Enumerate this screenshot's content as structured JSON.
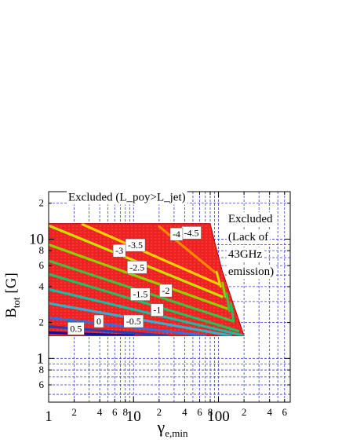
{
  "chart_data": {
    "type": "contour",
    "xlabel_main": "γ",
    "xlabel_sub": "e,min",
    "ylabel_main": "B",
    "ylabel_sub": "tot",
    "ylabel_unit": "[G]",
    "x_scale": "log",
    "y_scale": "log",
    "xlim": [
      1,
      700
    ],
    "ylim": [
      0.43,
      25
    ],
    "grid": true,
    "x_major_ticks": [
      {
        "v": 1,
        "label": "1"
      },
      {
        "v": 10,
        "label": "10"
      },
      {
        "v": 100,
        "label": "100"
      }
    ],
    "x_minor_ticks": [
      {
        "v": 2,
        "label": "2"
      },
      {
        "v": 4,
        "label": "4"
      },
      {
        "v": 6,
        "label": "6"
      },
      {
        "v": 8,
        "label": "8"
      },
      {
        "v": 20,
        "label": "2"
      },
      {
        "v": 40,
        "label": "4"
      },
      {
        "v": 60,
        "label": "6"
      },
      {
        "v": 80,
        "label": "8"
      },
      {
        "v": 200,
        "label": "2"
      },
      {
        "v": 400,
        "label": "4"
      },
      {
        "v": 600,
        "label": "6"
      }
    ],
    "y_major_ticks": [
      {
        "v": 1,
        "label": "1"
      },
      {
        "v": 10,
        "label": "10"
      }
    ],
    "y_minor_ticks": [
      {
        "v": 0.6,
        "label": "6"
      },
      {
        "v": 0.8,
        "label": "8"
      },
      {
        "v": 2,
        "label": "2"
      },
      {
        "v": 4,
        "label": "4"
      },
      {
        "v": 6,
        "label": "6"
      },
      {
        "v": 8,
        "label": "8"
      },
      {
        "v": 20,
        "label": "2"
      }
    ],
    "allowed_region": {
      "fill": "#ee2222",
      "boundary": [
        [
          1,
          1.55
        ],
        [
          200,
          1.55
        ],
        [
          110,
          5.5
        ],
        [
          90,
          9.5
        ],
        [
          80,
          13.5
        ],
        [
          1,
          13.5
        ]
      ]
    },
    "contours": [
      {
        "label": "-4.5",
        "color": "#ff8800",
        "points": [
          [
            20,
            12.8
          ],
          [
            90,
            5.3
          ]
        ],
        "label_at": [
          48,
          11.3
        ]
      },
      {
        "label": "-4",
        "color": "#ffd000",
        "points": [
          [
            2.5,
            13.3
          ],
          [
            100,
            4.2
          ]
        ],
        "label_at": [
          32,
          11.0
        ]
      },
      {
        "label": "-3.5",
        "color": "#c8e000",
        "points": [
          [
            1,
            13.0
          ],
          [
            110,
            3.3
          ]
        ],
        "label_at": [
          10.5,
          8.9
        ]
      },
      {
        "label": "-3",
        "color": "#90d000",
        "points": [
          [
            1,
            9.0
          ],
          [
            130,
            2.6
          ]
        ],
        "label_at": [
          6.8,
          8.0
        ]
      },
      {
        "label": "-2.5",
        "color": "#40c040",
        "points": [
          [
            1,
            6.6
          ],
          [
            150,
            2.05
          ]
        ],
        "label_at": [
          11,
          5.8
        ]
      },
      {
        "label": "-2",
        "color": "#20c060",
        "points": [
          [
            1,
            5.1
          ],
          [
            170,
            1.7
          ]
        ],
        "label_at": [
          24,
          3.7
        ]
      },
      {
        "label": "-1.5",
        "color": "#10c0a0",
        "points": [
          [
            1,
            3.8
          ],
          [
            200,
            1.55
          ]
        ],
        "label_at": [
          12,
          3.45
        ]
      },
      {
        "label": "-1",
        "color": "#30b0d0",
        "points": [
          [
            1,
            2.9
          ],
          [
            140,
            1.55
          ]
        ],
        "label_at": [
          19,
          2.55
        ]
      },
      {
        "label": "-0.5",
        "color": "#3070e0",
        "points": [
          [
            1,
            2.2
          ],
          [
            70,
            1.55
          ]
        ],
        "label_at": [
          10,
          2.05
        ]
      },
      {
        "label": "0",
        "color": "#2040c0",
        "points": [
          [
            1,
            1.85
          ],
          [
            25,
            1.55
          ]
        ],
        "label_at": [
          3.9,
          2.05
        ]
      },
      {
        "label": "0.5",
        "color": "#1010a0",
        "points": [
          [
            1,
            1.65
          ],
          [
            10,
            1.55
          ]
        ],
        "label_at": [
          2.1,
          1.78
        ]
      }
    ],
    "edge_strokes": [
      {
        "color": "#c8e000",
        "points": [
          [
            95,
            5.3
          ],
          [
            106,
            4.0
          ]
        ]
      },
      {
        "color": "#90d000",
        "points": [
          [
            112,
            4.3
          ],
          [
            120,
            3.3
          ]
        ]
      },
      {
        "color": "#40c040",
        "points": [
          [
            125,
            3.5
          ],
          [
            134,
            2.5
          ]
        ]
      },
      {
        "color": "#20c060",
        "points": [
          [
            140,
            2.9
          ],
          [
            150,
            2.1
          ]
        ]
      }
    ],
    "annotations": [
      {
        "text": "Excluded (L_poy>L_jet)",
        "at": [
          1.7,
          21.0
        ]
      },
      {
        "text": "Excluded",
        "at": [
          130,
          13.8
        ]
      },
      {
        "text": "(Lack of",
        "at": [
          130,
          9.8
        ]
      },
      {
        "text": "43GHz",
        "at": [
          130,
          7.0
        ]
      },
      {
        "text": "emission)",
        "at": [
          130,
          5.0
        ]
      }
    ]
  }
}
